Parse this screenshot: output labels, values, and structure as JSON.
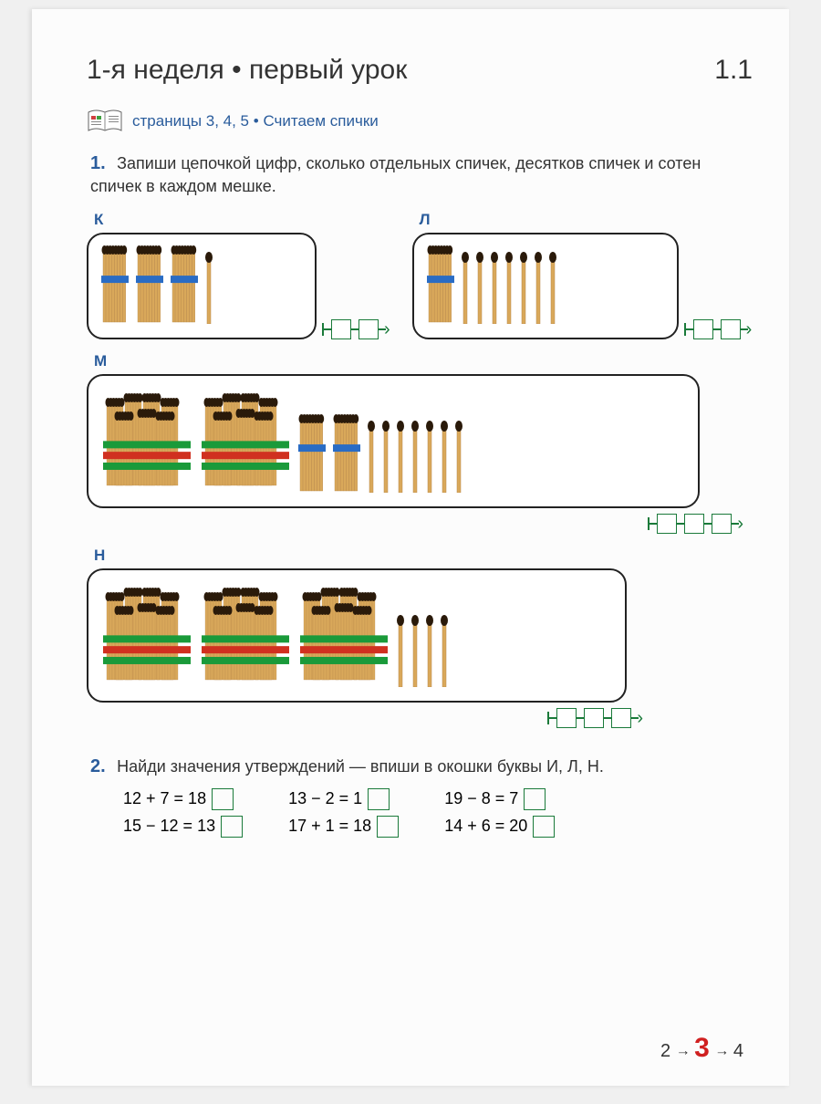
{
  "header": {
    "title": "1-я неделя • первый урок",
    "section": "1.1"
  },
  "subtitle": {
    "pages": "страницы 3, 4, 5",
    "topic": "Считаем спички"
  },
  "problem1": {
    "num": "1.",
    "text": "Запиши цепочкой цифр, сколько отдельных спичек, десятков спичек и сотен спичек в каждом мешке.",
    "bags": {
      "K": {
        "label": "К",
        "tens": 3,
        "ones": 1,
        "hundreds": 0,
        "chain_boxes": 2
      },
      "L": {
        "label": "Л",
        "tens": 1,
        "ones": 7,
        "hundreds": 0,
        "chain_boxes": 2
      },
      "M": {
        "label": "М",
        "tens": 2,
        "ones": 7,
        "hundreds": 2,
        "chain_boxes": 3
      },
      "N": {
        "label": "Н",
        "tens": 0,
        "ones": 4,
        "hundreds": 3,
        "chain_boxes": 3
      }
    }
  },
  "problem2": {
    "num": "2.",
    "text": "Найди значения утверждений — впиши в окошки буквы И, Л, Н.",
    "cols": [
      [
        "12 + 7 = 18",
        "15 − 12 = 13"
      ],
      [
        "13 − 2 = 1",
        "17 + 1 = 18"
      ],
      [
        "19 − 8 = 7",
        "14 + 6 = 20"
      ]
    ]
  },
  "footer": {
    "prev": "2",
    "cur": "3",
    "next": "4"
  },
  "colors": {
    "accent_blue": "#2a5c9c",
    "accent_green": "#1a7a3a",
    "accent_red": "#d02020",
    "match_wood": "#d9a85a",
    "match_head": "#2a1a0a",
    "band_blue": "#2a6cc4",
    "band_green": "#1a9a3a",
    "band_red": "#d03020"
  }
}
